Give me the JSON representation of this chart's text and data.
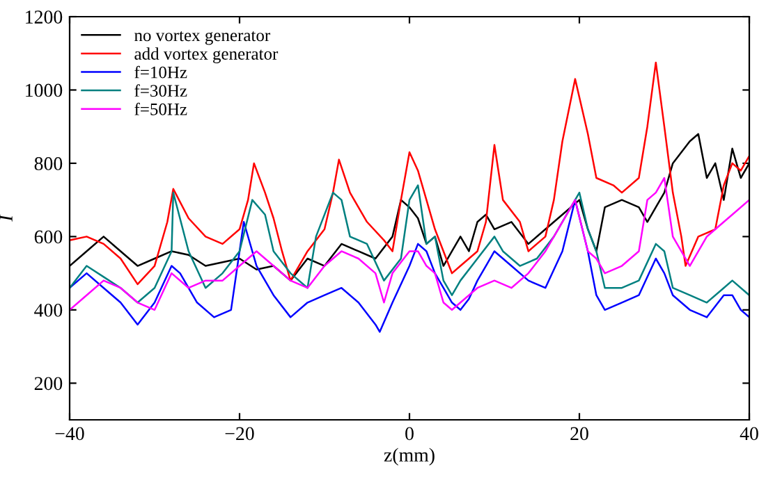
{
  "chart_data": {
    "type": "line",
    "xlabel": "z(mm)",
    "ylabel": "I",
    "xlim": [
      -40,
      40
    ],
    "ylim": [
      100,
      1200
    ],
    "xticks": [
      {
        "value": -40,
        "label": "−40"
      },
      {
        "value": -20,
        "label": "−20"
      },
      0,
      20,
      40
    ],
    "yticks": [
      200,
      400,
      600,
      800,
      1000,
      1200
    ],
    "grid": false,
    "legend": "top left",
    "marker": "none",
    "line_style": "solid",
    "series": [
      {
        "name": "no vortex generator",
        "color": "#000000",
        "x": [
          -40,
          -38,
          -36,
          -34,
          -32,
          -30,
          -28,
          -26,
          -24,
          -22,
          -20,
          -18,
          -16,
          -14,
          -12,
          -10,
          -8,
          -6,
          -4,
          -2,
          -1,
          0,
          1,
          2,
          3,
          4,
          5,
          6,
          7,
          8,
          9,
          10,
          12,
          14,
          16,
          18,
          20,
          21,
          22,
          23,
          25,
          27,
          28,
          29,
          30,
          31,
          33,
          34,
          35,
          36,
          37,
          38,
          39,
          40
        ],
        "values": [
          520,
          560,
          600,
          560,
          520,
          540,
          560,
          550,
          520,
          530,
          540,
          510,
          520,
          480,
          540,
          520,
          580,
          560,
          540,
          600,
          700,
          680,
          650,
          580,
          600,
          520,
          560,
          600,
          560,
          640,
          660,
          620,
          640,
          580,
          620,
          660,
          700,
          620,
          560,
          680,
          700,
          680,
          640,
          680,
          720,
          800,
          860,
          880,
          760,
          800,
          700,
          840,
          760,
          800
        ]
      },
      {
        "name": "add vortex generator",
        "color": "#ff0000",
        "x": [
          -40,
          -38,
          -36,
          -34,
          -32,
          -30,
          -28.5,
          -27.8,
          -26,
          -24,
          -22,
          -20,
          -19,
          -18.3,
          -17,
          -16,
          -15,
          -14,
          -12,
          -10,
          -9,
          -8.3,
          -7,
          -5,
          -3,
          -2,
          -1,
          0,
          1,
          2,
          3,
          4,
          5,
          6,
          8,
          9,
          10,
          11,
          13,
          14,
          16,
          17,
          18,
          19.5,
          21,
          22,
          24,
          25,
          27,
          28,
          29,
          30,
          31,
          32,
          32.5,
          34,
          36,
          37,
          38,
          39,
          40
        ],
        "values": [
          590,
          600,
          580,
          540,
          470,
          520,
          640,
          730,
          650,
          600,
          580,
          620,
          700,
          800,
          720,
          650,
          560,
          480,
          560,
          620,
          720,
          810,
          720,
          640,
          590,
          560,
          700,
          830,
          780,
          700,
          620,
          560,
          500,
          520,
          560,
          640,
          850,
          700,
          640,
          560,
          600,
          700,
          860,
          1030,
          880,
          760,
          740,
          720,
          760,
          900,
          1075,
          900,
          720,
          600,
          520,
          600,
          620,
          740,
          800,
          780,
          820
        ]
      },
      {
        "name": "f=10Hz",
        "color": "#0000ff",
        "x": [
          -40,
          -38,
          -36,
          -34,
          -32,
          -30,
          -28,
          -27,
          -25,
          -23,
          -21,
          -19.5,
          -18,
          -16,
          -14,
          -12,
          -10,
          -8,
          -6,
          -4,
          -3.5,
          -2,
          0,
          1,
          2,
          3,
          4,
          5,
          6,
          7,
          8,
          9,
          10,
          12,
          14,
          16,
          18,
          19.5,
          21,
          22,
          23,
          25,
          27,
          29,
          30,
          31,
          33,
          35,
          37,
          38,
          39,
          40
        ],
        "values": [
          460,
          500,
          460,
          420,
          360,
          420,
          520,
          500,
          420,
          380,
          400,
          640,
          520,
          440,
          380,
          420,
          440,
          460,
          420,
          360,
          340,
          420,
          520,
          580,
          560,
          500,
          460,
          420,
          400,
          430,
          480,
          520,
          560,
          520,
          480,
          460,
          560,
          700,
          560,
          440,
          400,
          420,
          440,
          540,
          500,
          440,
          400,
          380,
          440,
          440,
          400,
          380
        ]
      },
      {
        "name": "f=30Hz",
        "color": "#008080",
        "x": [
          -40,
          -38,
          -36,
          -34,
          -32,
          -30,
          -28,
          -27.8,
          -26,
          -24,
          -22,
          -20,
          -18.5,
          -17,
          -16,
          -14,
          -12,
          -11,
          -9,
          -8,
          -7,
          -5,
          -3,
          -1,
          0,
          1,
          2,
          3,
          4,
          5,
          6,
          8,
          10,
          11,
          13,
          15,
          17,
          19,
          20,
          21,
          22,
          23,
          25,
          27,
          29,
          30,
          31,
          33,
          35,
          37,
          38,
          40
        ],
        "values": [
          460,
          520,
          490,
          460,
          420,
          460,
          560,
          720,
          560,
          460,
          500,
          560,
          700,
          660,
          560,
          500,
          460,
          600,
          720,
          700,
          600,
          580,
          480,
          540,
          700,
          740,
          580,
          600,
          480,
          440,
          480,
          540,
          600,
          560,
          520,
          540,
          600,
          680,
          720,
          620,
          560,
          460,
          460,
          480,
          580,
          560,
          460,
          440,
          420,
          460,
          480,
          440
        ]
      },
      {
        "name": "f=50Hz",
        "color": "#ff00ff",
        "x": [
          -40,
          -38,
          -36,
          -34,
          -32,
          -30,
          -28,
          -26,
          -24,
          -22,
          -20,
          -18,
          -16,
          -14,
          -12,
          -10,
          -8,
          -6,
          -4,
          -3,
          -2,
          0,
          1,
          2,
          3,
          4,
          5,
          6,
          8,
          10,
          12,
          14,
          16,
          18,
          19.5,
          21,
          22,
          23,
          25,
          27,
          28,
          29,
          30,
          31,
          32,
          33,
          35,
          37,
          38,
          40
        ],
        "values": [
          400,
          440,
          480,
          460,
          420,
          400,
          500,
          460,
          480,
          480,
          520,
          560,
          520,
          480,
          460,
          520,
          560,
          540,
          500,
          420,
          500,
          560,
          560,
          520,
          500,
          420,
          400,
          420,
          460,
          480,
          460,
          500,
          560,
          640,
          700,
          560,
          540,
          500,
          520,
          560,
          700,
          720,
          760,
          600,
          560,
          520,
          600,
          640,
          660,
          700
        ]
      }
    ]
  }
}
